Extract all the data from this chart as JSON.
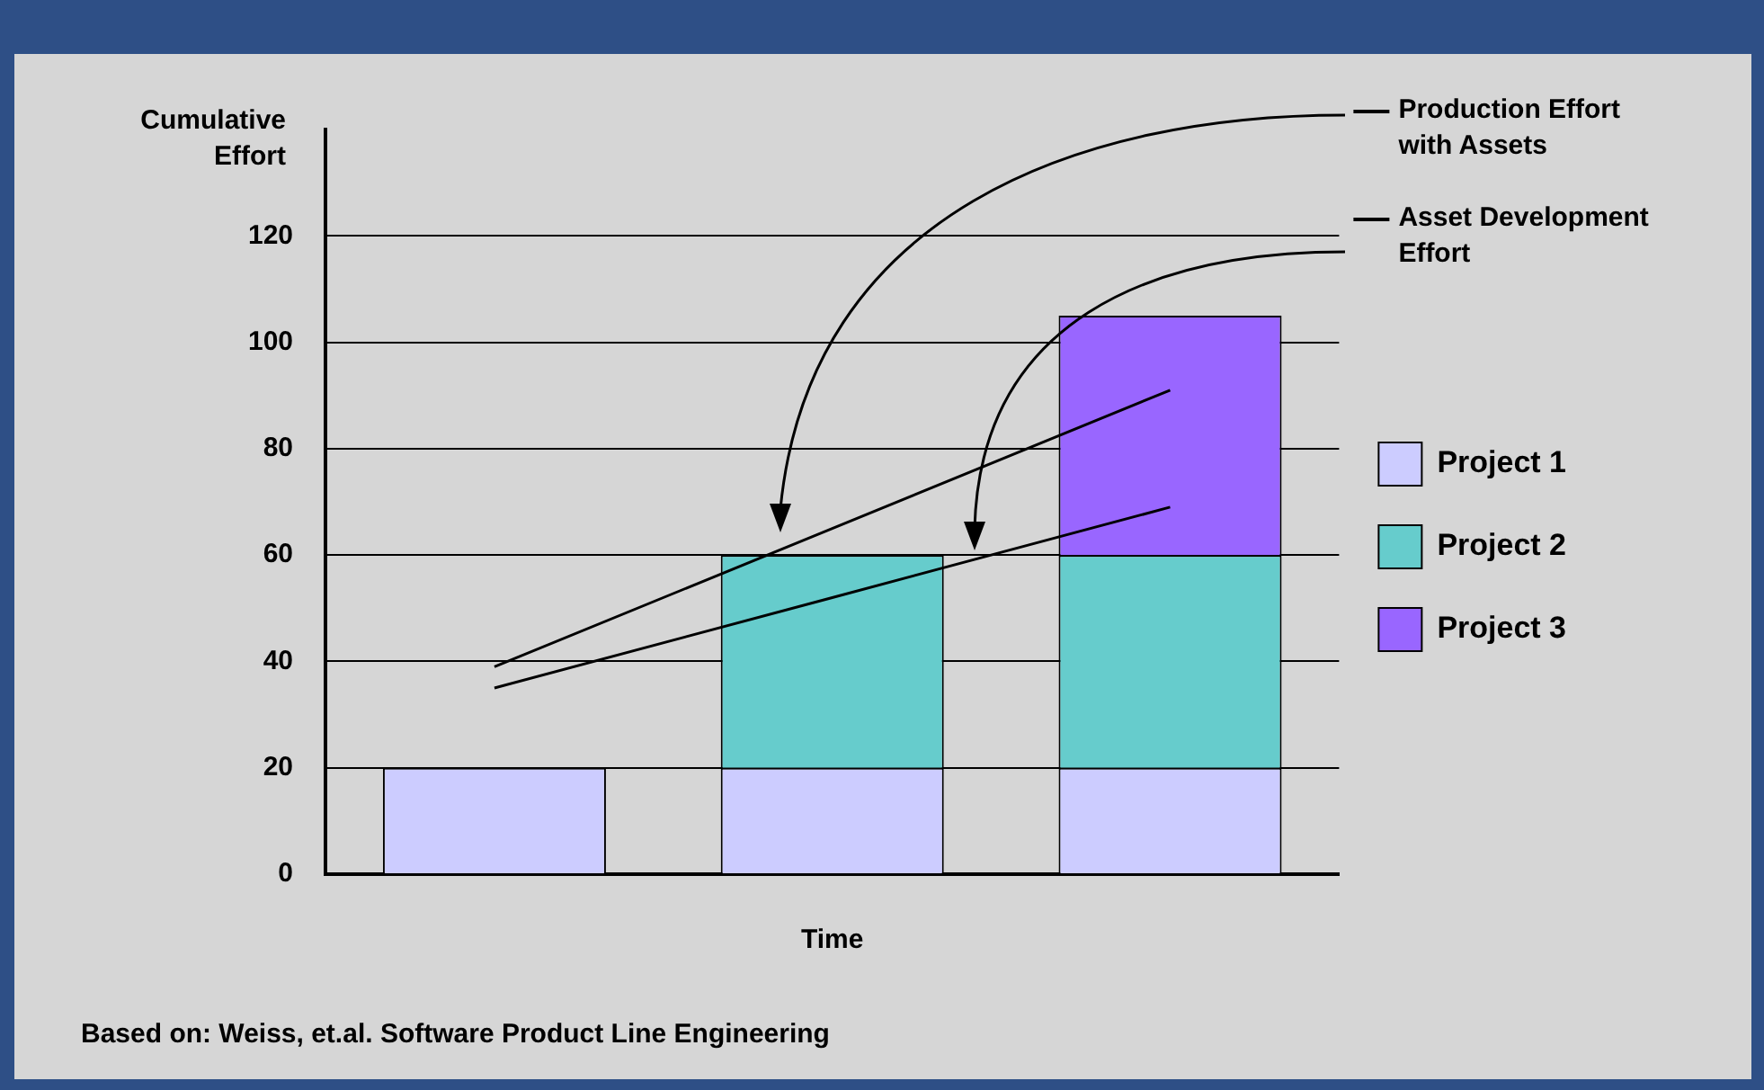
{
  "chart_data": {
    "type": "bar",
    "xlabel": "Time",
    "ylabel": "Cumulative Effort",
    "categories": [
      null,
      null,
      null
    ],
    "stacked": true,
    "series": [
      {
        "name": "Project 1",
        "color": "#ccccff",
        "values": [
          20,
          20,
          20
        ]
      },
      {
        "name": "Project 2",
        "color": "#66cccc",
        "values": [
          0,
          40,
          40
        ]
      },
      {
        "name": "Project 3",
        "color": "#9966ff",
        "values": [
          0,
          0,
          45
        ]
      },
      {
        "name": "Production Effort with Assets",
        "type": "line",
        "color": "#000000",
        "values": [
          39,
          65,
          91
        ]
      },
      {
        "name": "Asset Development Effort",
        "type": "line",
        "color": "#000000",
        "values": [
          35,
          52,
          69
        ]
      }
    ],
    "ylim": [
      0,
      140
    ],
    "yticks": [
      0,
      20,
      40,
      60,
      80,
      100,
      120
    ],
    "grid": "y",
    "legend": "right",
    "marker": "none",
    "line_style": "solid",
    "annotations": [
      "Based on: Weiss, et.al. Software Product Line Engineering"
    ]
  }
}
